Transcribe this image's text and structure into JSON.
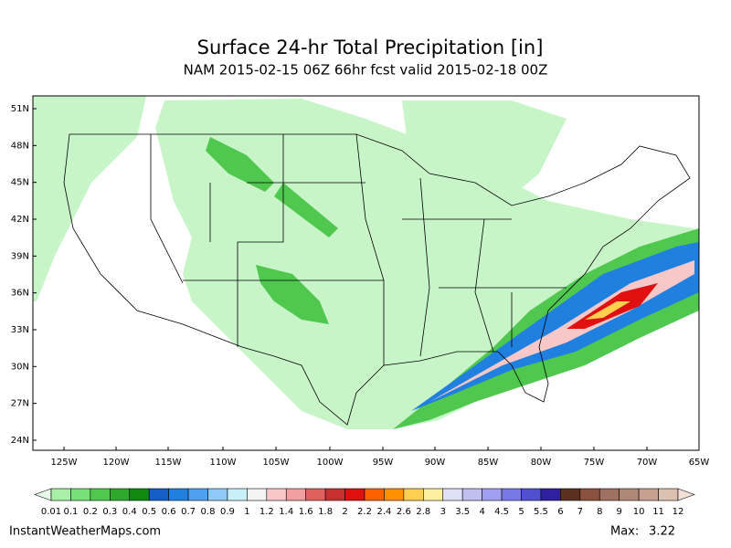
{
  "header": {
    "title": "Surface 24-hr Total Precipitation [in]",
    "subtitle": "NAM 2015-02-15 06Z 66hr fcst valid 2015-02-18 00Z"
  },
  "map": {
    "lat_labels": [
      "51N",
      "48N",
      "45N",
      "42N",
      "39N",
      "36N",
      "33N",
      "30N",
      "27N",
      "24N"
    ],
    "lon_labels": [
      "125W",
      "120W",
      "115W",
      "110W",
      "105W",
      "100W",
      "95W",
      "90W",
      "85W",
      "80W",
      "75W",
      "70W",
      "65W"
    ]
  },
  "legend": {
    "labels": [
      "0.01",
      "0.1",
      "0.2",
      "0.3",
      "0.4",
      "0.5",
      "0.6",
      "0.7",
      "0.8",
      "0.9",
      "1",
      "1.2",
      "1.4",
      "1.6",
      "1.8",
      "2",
      "2.2",
      "2.4",
      "2.6",
      "2.8",
      "3",
      "3.5",
      "4",
      "4.5",
      "5",
      "5.5",
      "6",
      "7",
      "8",
      "9",
      "10",
      "11",
      "12"
    ],
    "colors": [
      "#e6ffe6",
      "#a8f0a8",
      "#78e078",
      "#50c850",
      "#30a830",
      "#108a10",
      "#1460c8",
      "#2080e0",
      "#50a0f0",
      "#90c8f8",
      "#c8f0f8",
      "#f4f4f4",
      "#f8c8c8",
      "#f0a0a0",
      "#e06060",
      "#c83030",
      "#e01010",
      "#ff6000",
      "#ff9000",
      "#ffd050",
      "#fff0a0",
      "#e0e0f8",
      "#c0c0f0",
      "#a0a0f0",
      "#7878e8",
      "#5050d0",
      "#3020a0",
      "#5a3020",
      "#8a5040",
      "#a07060",
      "#b08878",
      "#c8a090",
      "#dcc0b0",
      "#f0e0d8"
    ]
  },
  "footer": {
    "source": "InstantWeatherMaps.com",
    "max_label": "Max:",
    "max_value": "3.22"
  }
}
